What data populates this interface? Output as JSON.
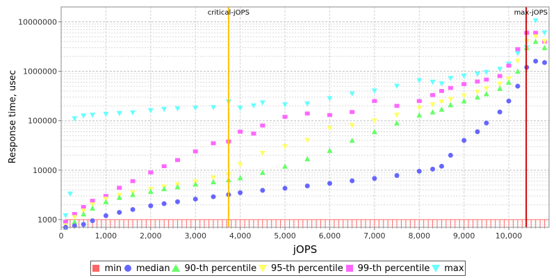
{
  "chart_data": {
    "type": "scatter",
    "xlabel": "jOPS",
    "ylabel": "Response time, usec",
    "xlim": [
      0,
      10900
    ],
    "ylim": [
      700,
      20000000
    ],
    "yscale": "log",
    "grid": true,
    "legend_placement": "bottom",
    "x_ticks": [
      {
        "value": 0,
        "label": "0"
      },
      {
        "value": 1000,
        "label": "1,000"
      },
      {
        "value": 2000,
        "label": "2,000"
      },
      {
        "value": 3000,
        "label": "3,000"
      },
      {
        "value": 4000,
        "label": "4,000"
      },
      {
        "value": 5000,
        "label": "5,000"
      },
      {
        "value": 6000,
        "label": "6,000"
      },
      {
        "value": 7000,
        "label": "7,000"
      },
      {
        "value": 8000,
        "label": "8,000"
      },
      {
        "value": 9000,
        "label": "9,000"
      },
      {
        "value": 10000,
        "label": "10,000"
      }
    ],
    "y_ticks": [
      {
        "value": 1000,
        "label": "1000"
      },
      {
        "value": 10000,
        "label": "10000"
      },
      {
        "value": 100000,
        "label": "100000"
      },
      {
        "value": 1000000,
        "label": "1000000"
      },
      {
        "value": 10000000,
        "label": "10000000"
      }
    ],
    "markers": [
      {
        "label": "critical-jOPS",
        "x": 3740,
        "color": "#ffc000"
      },
      {
        "label": "max-jOPS",
        "x": 10390,
        "color": "#cc0000"
      }
    ],
    "min_line": {
      "value": 1000,
      "x_start": 100,
      "x_end": 10900,
      "step": 100
    },
    "series": [
      {
        "name": "min",
        "symbol": "square",
        "color": "#ff6666",
        "x": [],
        "y": []
      },
      {
        "name": "median",
        "symbol": "circle",
        "color": "#6666ff",
        "x": [
          100,
          300,
          500,
          700,
          1000,
          1300,
          1600,
          2000,
          2300,
          2600,
          3000,
          3400,
          3740,
          4000,
          4500,
          5000,
          5500,
          6000,
          6500,
          7000,
          7500,
          8000,
          8300,
          8500,
          8700,
          9000,
          9300,
          9500,
          9800,
          10000,
          10200,
          10400,
          10600,
          10800
        ],
        "y": [
          700,
          750,
          800,
          950,
          1200,
          1400,
          1600,
          1900,
          2100,
          2300,
          2600,
          2900,
          3200,
          3500,
          3900,
          4300,
          4800,
          5400,
          6100,
          6800,
          7800,
          9500,
          10500,
          12000,
          20000,
          40000,
          60000,
          90000,
          150000,
          250000,
          500000,
          1200000,
          1600000,
          1500000
        ]
      },
      {
        "name": "90-th percentile",
        "symbol": "triangle-up",
        "color": "#66ff66",
        "x": [
          100,
          300,
          500,
          700,
          1000,
          1300,
          1600,
          2000,
          2300,
          2600,
          3000,
          3400,
          3740,
          4000,
          4500,
          5000,
          5500,
          6000,
          6500,
          7000,
          7500,
          8000,
          8300,
          8500,
          8700,
          9000,
          9300,
          9500,
          9800,
          10000,
          10200,
          10400,
          10600,
          10800
        ],
        "y": [
          700,
          900,
          1300,
          1700,
          2300,
          2800,
          3200,
          3700,
          4200,
          4600,
          5200,
          5800,
          6400,
          7000,
          9000,
          12000,
          17000,
          25000,
          40000,
          60000,
          90000,
          130000,
          150000,
          170000,
          210000,
          250000,
          300000,
          350000,
          450000,
          600000,
          1000000,
          3000000,
          4000000,
          3000000
        ]
      },
      {
        "name": "95-th percentile",
        "symbol": "triangle-down",
        "color": "#ffff66",
        "x": [
          100,
          300,
          500,
          700,
          1000,
          1300,
          1600,
          2000,
          2300,
          2600,
          3000,
          3400,
          3740,
          4000,
          4500,
          5000,
          5500,
          6000,
          6500,
          7000,
          7500,
          8000,
          8300,
          8500,
          8700,
          9000,
          9300,
          9500,
          9800,
          10000,
          10200,
          10400,
          10600,
          10800
        ],
        "y": [
          750,
          1100,
          1500,
          2000,
          2600,
          3100,
          3500,
          4100,
          4600,
          5100,
          5800,
          7000,
          8000,
          13000,
          22000,
          30000,
          40000,
          70000,
          80000,
          100000,
          130000,
          180000,
          210000,
          240000,
          270000,
          320000,
          380000,
          450000,
          550000,
          700000,
          1600000,
          4000000,
          5000000,
          4000000
        ]
      },
      {
        "name": "99-th percentile",
        "symbol": "square",
        "color": "#ff66ff",
        "x": [
          100,
          300,
          500,
          700,
          1000,
          1300,
          1600,
          2000,
          2300,
          2600,
          3000,
          3400,
          3740,
          4000,
          4300,
          4500,
          5000,
          5500,
          6000,
          6500,
          7000,
          7500,
          8000,
          8300,
          8500,
          8700,
          9000,
          9300,
          9500,
          9800,
          10000,
          10200,
          10400,
          10600,
          10800
        ],
        "y": [
          900,
          1300,
          1800,
          2400,
          3000,
          4400,
          6000,
          9000,
          12000,
          16000,
          24000,
          35000,
          38000,
          60000,
          55000,
          80000,
          120000,
          140000,
          130000,
          150000,
          250000,
          200000,
          250000,
          330000,
          400000,
          460000,
          550000,
          620000,
          680000,
          800000,
          1300000,
          2800000,
          6000000,
          6000000,
          4000000
        ]
      },
      {
        "name": "max",
        "symbol": "triangle-down",
        "color": "#66ffff",
        "x": [
          100,
          200,
          300,
          500,
          700,
          1000,
          1300,
          1600,
          2000,
          2300,
          2600,
          3000,
          3400,
          3740,
          4000,
          4300,
          4500,
          5000,
          5500,
          6000,
          6500,
          7000,
          7500,
          8000,
          8300,
          8500,
          8700,
          9000,
          9300,
          9500,
          9800,
          10000,
          10200,
          10400,
          10600,
          10800
        ],
        "y": [
          1200,
          3300,
          110000,
          125000,
          130000,
          135000,
          140000,
          145000,
          160000,
          170000,
          175000,
          180000,
          185000,
          240000,
          180000,
          200000,
          230000,
          210000,
          220000,
          280000,
          350000,
          400000,
          500000,
          650000,
          600000,
          560000,
          720000,
          800000,
          880000,
          950000,
          1100000,
          1400000,
          2300000,
          3000000,
          10500000,
          6000000
        ]
      }
    ]
  }
}
